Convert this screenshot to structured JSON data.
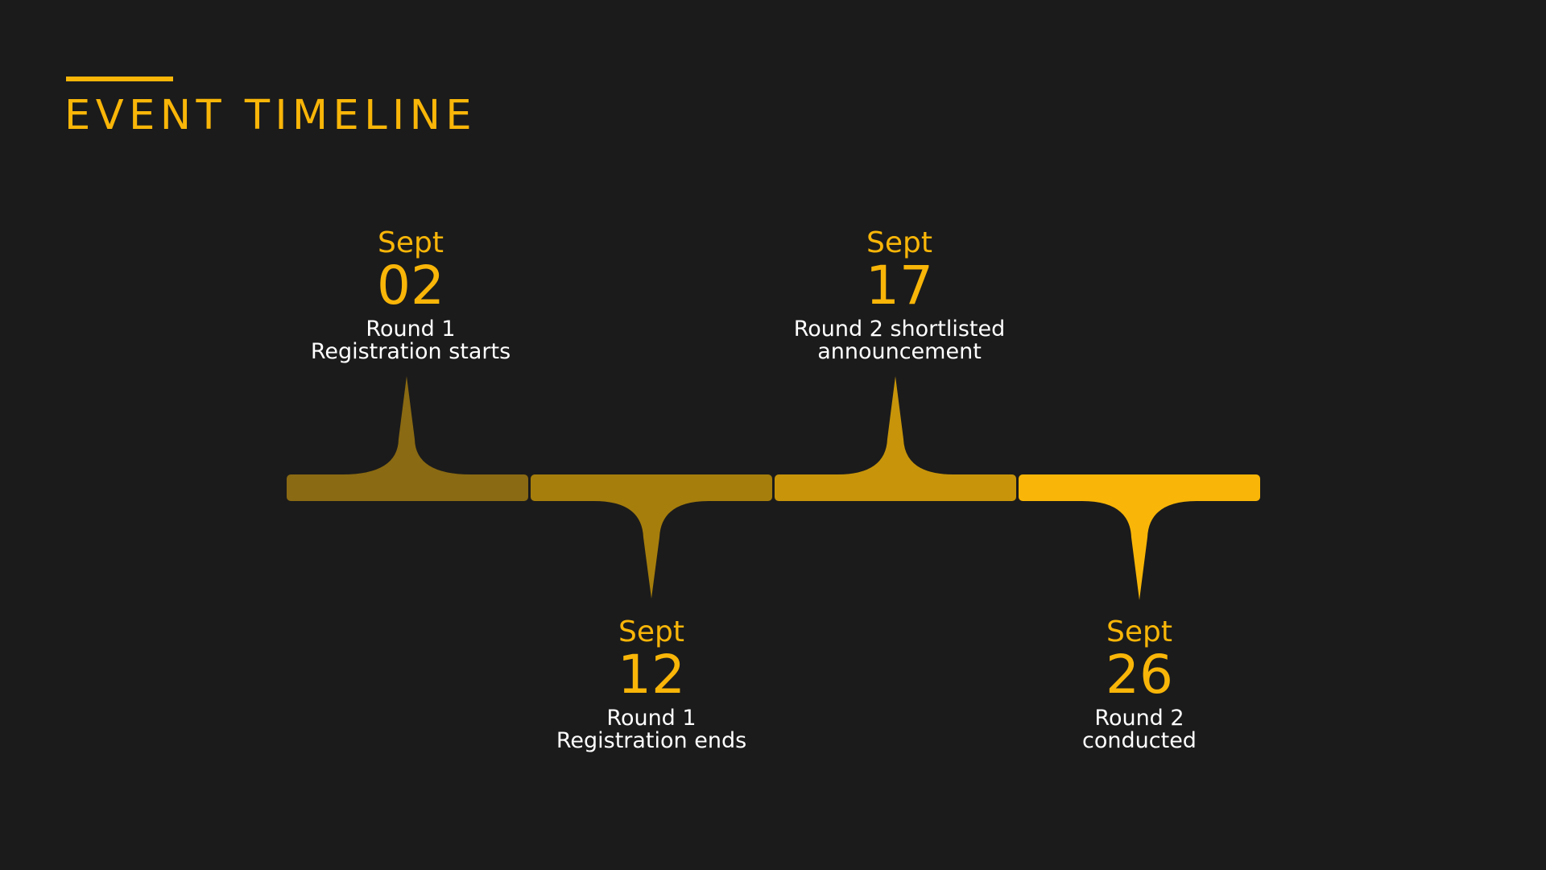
{
  "title": "EVENT TIMELINE",
  "colors": {
    "background": "#1b1b1b",
    "accent": "#f9b608",
    "text": "#ffffff",
    "segments": [
      "#8a6a12",
      "#a67e0c",
      "#c8950a",
      "#f9b608"
    ]
  },
  "events": [
    {
      "month": "Sept",
      "day": "02",
      "line1": "Round 1",
      "line2": "Registration starts",
      "direction": "up"
    },
    {
      "month": "Sept",
      "day": "12",
      "line1": "Round 1",
      "line2": "Registration ends",
      "direction": "down"
    },
    {
      "month": "Sept",
      "day": "17",
      "line1": "Round 2 shortlisted",
      "line2": "announcement",
      "direction": "up"
    },
    {
      "month": "Sept",
      "day": "26",
      "line1": "Round 2",
      "line2": "conducted",
      "direction": "down"
    }
  ]
}
